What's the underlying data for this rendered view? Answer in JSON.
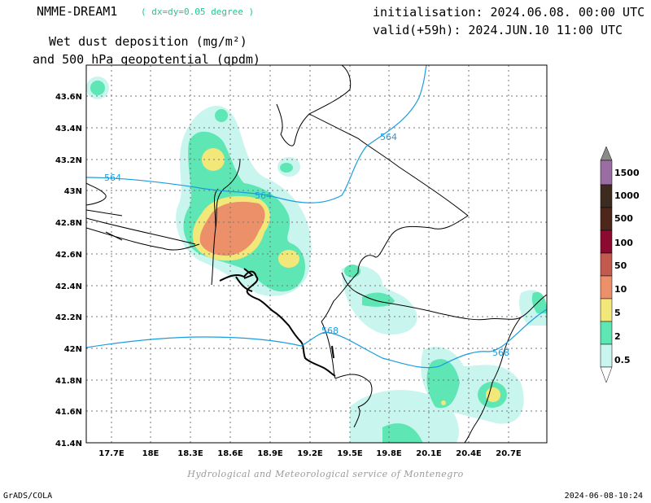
{
  "header": {
    "model_name": "NMME-DREAM1",
    "model_resolution": "( dx=dy=0.05 degree )",
    "title_line1": "Wet dust deposition (mg/m²)",
    "title_line2": "and 500 hPa geopotential (gpdm)",
    "init_line": "initialisation: 2024.06.08. 00:00 UTC",
    "valid_line": "valid(+59h): 2024.JUN.10 11:00 UTC"
  },
  "map": {
    "lon_ticks": [
      "17.7E",
      "18E",
      "18.3E",
      "18.6E",
      "18.9E",
      "19.2E",
      "19.5E",
      "19.8E",
      "20.1E",
      "20.4E",
      "20.7E"
    ],
    "lat_ticks": [
      "43.6N",
      "43.4N",
      "43.2N",
      "43N",
      "42.8N",
      "42.6N",
      "42.4N",
      "42.2N",
      "42N",
      "41.8N",
      "41.6N",
      "41.4N"
    ],
    "contour_labels": [
      "564",
      "564",
      "564",
      "568",
      "568"
    ],
    "colors": {
      "c0_5": "#c8f5ee",
      "c2": "#5ee6b4",
      "c5": "#f2e87a",
      "c10": "#ec9069",
      "c50": "#c25a4e",
      "c100": "#8c0a30",
      "c500": "#4f261a",
      "c1000": "#3d2b1f",
      "c1500": "#9b6ea3",
      "top": "#8a8a8a",
      "contour": "#1a9de0"
    }
  },
  "legend": {
    "labels": [
      "1500",
      "1000",
      "500",
      "100",
      "50",
      "10",
      "5",
      "2",
      "0.5"
    ]
  },
  "footer": {
    "credit": "Hydrological and Meteorological service of Montenegro",
    "software": "GrADS/COLA",
    "timestamp": "2024-06-08-10:24"
  }
}
